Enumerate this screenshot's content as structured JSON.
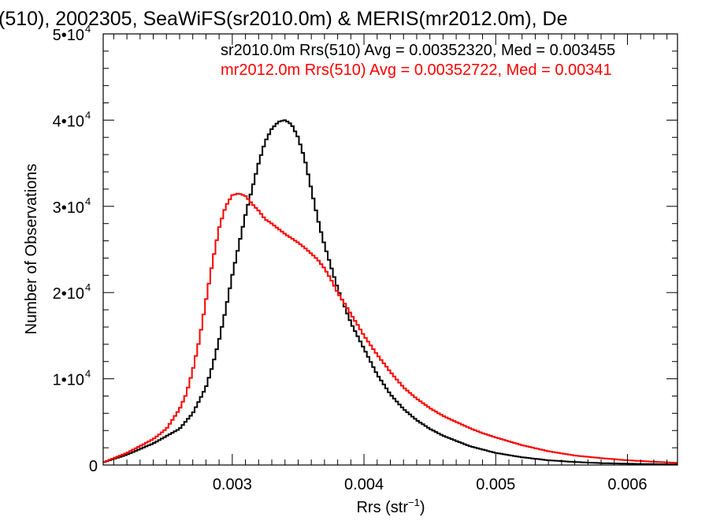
{
  "chart_data": {
    "type": "line",
    "title": "(510), 2002305, SeaWiFS(sr2010.0m) & MERIS(mr2012.0m), De",
    "xlabel": "Rrs (str",
    "xlabel_sup": "−1",
    "xlabel_close": ")",
    "ylabel": "Number of Observations",
    "xlim": [
      0.00202,
      0.00638
    ],
    "ylim": [
      0,
      50000
    ],
    "x_tick_values": [
      0.003,
      0.004,
      0.005,
      0.006
    ],
    "x_tick_labels": [
      "0.003",
      "0.004",
      "0.005",
      "0.006"
    ],
    "y_ticks": [
      {
        "value": 0,
        "base": "0",
        "exp": ""
      },
      {
        "value": 10000,
        "base": "1•10",
        "exp": "4"
      },
      {
        "value": 20000,
        "base": "2•10",
        "exp": "4"
      },
      {
        "value": 30000,
        "base": "3•10",
        "exp": "4"
      },
      {
        "value": 40000,
        "base": "4•10",
        "exp": "4"
      },
      {
        "value": 50000,
        "base": "5•10",
        "exp": "4"
      }
    ],
    "series": [
      {
        "legend": "sr2010.0m Rrs(510) Avg = 0.00352320, Med = 0.003455",
        "color": "#000000",
        "points": [
          [
            0.00202,
            300
          ],
          [
            0.0022,
            1200
          ],
          [
            0.0024,
            2500
          ],
          [
            0.0026,
            4200
          ],
          [
            0.0027,
            6000
          ],
          [
            0.00275,
            7500
          ],
          [
            0.0028,
            9000
          ],
          [
            0.00285,
            11500
          ],
          [
            0.0029,
            14500
          ],
          [
            0.00295,
            18000
          ],
          [
            0.003,
            22000
          ],
          [
            0.00305,
            25500
          ],
          [
            0.0031,
            29000
          ],
          [
            0.00315,
            32000
          ],
          [
            0.0032,
            35000
          ],
          [
            0.00325,
            37500
          ],
          [
            0.0033,
            39000
          ],
          [
            0.00335,
            39800
          ],
          [
            0.0034,
            40000
          ],
          [
            0.00345,
            39500
          ],
          [
            0.0035,
            38000
          ],
          [
            0.00355,
            35500
          ],
          [
            0.0036,
            32000
          ],
          [
            0.00365,
            28500
          ],
          [
            0.0037,
            25500
          ],
          [
            0.00375,
            23000
          ],
          [
            0.0038,
            20500
          ],
          [
            0.00385,
            18500
          ],
          [
            0.0039,
            16500
          ],
          [
            0.00395,
            15000
          ],
          [
            0.004,
            13500
          ],
          [
            0.0041,
            10500
          ],
          [
            0.0042,
            8200
          ],
          [
            0.0043,
            6500
          ],
          [
            0.0044,
            5200
          ],
          [
            0.0045,
            4200
          ],
          [
            0.0046,
            3400
          ],
          [
            0.0047,
            2800
          ],
          [
            0.0048,
            2200
          ],
          [
            0.0049,
            1800
          ],
          [
            0.005,
            1400
          ],
          [
            0.0052,
            900
          ],
          [
            0.0054,
            550
          ],
          [
            0.0056,
            350
          ],
          [
            0.0058,
            220
          ],
          [
            0.006,
            150
          ],
          [
            0.0062,
            100
          ],
          [
            0.00638,
            60
          ]
        ]
      },
      {
        "legend": "mr2012.0m Rrs(510) Avg = 0.00352722, Med = 0.00341",
        "color": "#ff0000",
        "points": [
          [
            0.00202,
            300
          ],
          [
            0.0022,
            1400
          ],
          [
            0.0024,
            3000
          ],
          [
            0.0025,
            4200
          ],
          [
            0.0026,
            6500
          ],
          [
            0.00265,
            8200
          ],
          [
            0.0027,
            11000
          ],
          [
            0.00275,
            14500
          ],
          [
            0.0028,
            19000
          ],
          [
            0.00285,
            23500
          ],
          [
            0.0029,
            27500
          ],
          [
            0.00295,
            30000
          ],
          [
            0.003,
            31300
          ],
          [
            0.00305,
            31500
          ],
          [
            0.0031,
            31200
          ],
          [
            0.00315,
            30300
          ],
          [
            0.0032,
            29500
          ],
          [
            0.00325,
            28500
          ],
          [
            0.0033,
            28000
          ],
          [
            0.0034,
            26800
          ],
          [
            0.0035,
            25800
          ],
          [
            0.00355,
            25200
          ],
          [
            0.0036,
            24500
          ],
          [
            0.00365,
            23800
          ],
          [
            0.0037,
            22800
          ],
          [
            0.00375,
            21500
          ],
          [
            0.0038,
            20000
          ],
          [
            0.00385,
            18800
          ],
          [
            0.0039,
            17500
          ],
          [
            0.00395,
            16300
          ],
          [
            0.004,
            15000
          ],
          [
            0.0041,
            12800
          ],
          [
            0.0042,
            10800
          ],
          [
            0.0043,
            9000
          ],
          [
            0.0044,
            7700
          ],
          [
            0.0045,
            6600
          ],
          [
            0.0046,
            5700
          ],
          [
            0.0047,
            5000
          ],
          [
            0.0048,
            4300
          ],
          [
            0.0049,
            3700
          ],
          [
            0.005,
            3200
          ],
          [
            0.0052,
            2300
          ],
          [
            0.0054,
            1600
          ],
          [
            0.0056,
            1100
          ],
          [
            0.0058,
            800
          ],
          [
            0.006,
            550
          ],
          [
            0.0062,
            380
          ],
          [
            0.00638,
            250
          ]
        ]
      }
    ]
  }
}
